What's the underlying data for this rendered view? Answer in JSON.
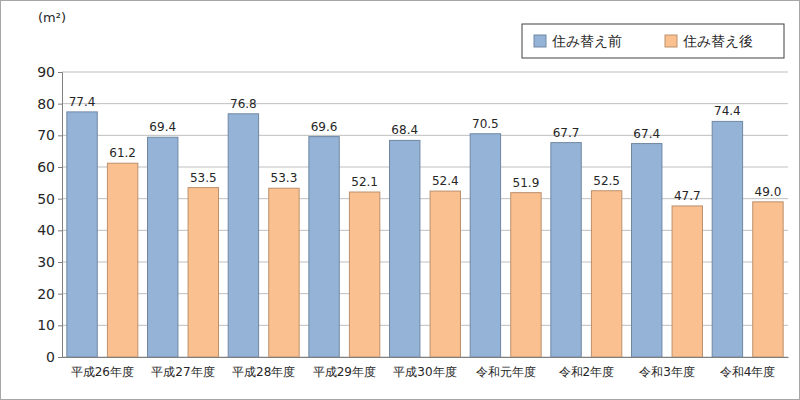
{
  "chart_data": {
    "type": "bar",
    "y_label": "(m²)",
    "categories": [
      "平成26年度",
      "平成27年度",
      "平成28年度",
      "平成29年度",
      "平成30年度",
      "令和元年度",
      "令和2年度",
      "令和3年度",
      "令和4年度"
    ],
    "series": [
      {
        "name": "住み替え前",
        "color": "#95b3d7",
        "values": [
          77.4,
          69.4,
          76.8,
          69.6,
          68.4,
          70.5,
          67.7,
          67.4,
          74.4
        ],
        "value_labels": [
          "77.4",
          "69.4",
          "76.8",
          "69.6",
          "68.4",
          "70.5",
          "67.7",
          "67.4",
          "74.4"
        ]
      },
      {
        "name": "住み替え後",
        "color": "#fac090",
        "values": [
          61.2,
          53.5,
          53.3,
          52.1,
          52.4,
          51.9,
          52.5,
          47.7,
          49.0
        ],
        "value_labels": [
          "61.2",
          "53.5",
          "53.3",
          "52.1",
          "52.4",
          "51.9",
          "52.5",
          "47.7",
          "49.0"
        ]
      }
    ],
    "ylim": [
      0,
      90
    ],
    "yticks": [
      0,
      10,
      20,
      30,
      40,
      50,
      60,
      70,
      80,
      90
    ],
    "grid": true,
    "legend": "top-right",
    "data_labels": true
  }
}
